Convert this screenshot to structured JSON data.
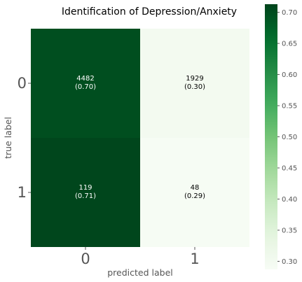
{
  "chart_data": {
    "type": "heatmap",
    "title": "Identification of Depression/Anxiety",
    "xlabel": "predicted label",
    "ylabel": "true label",
    "x_categories": [
      "0",
      "1"
    ],
    "y_categories": [
      "0",
      "1"
    ],
    "cells": [
      {
        "row": 0,
        "col": 0,
        "count": "4482",
        "ratio": "(0.70)",
        "value": 0.7
      },
      {
        "row": 0,
        "col": 1,
        "count": "1929",
        "ratio": "(0.30)",
        "value": 0.3
      },
      {
        "row": 1,
        "col": 0,
        "count": "119",
        "ratio": "(0.71)",
        "value": 0.71
      },
      {
        "row": 1,
        "col": 1,
        "count": "48",
        "ratio": "(0.29)",
        "value": 0.29
      }
    ],
    "colorbar": {
      "min": 0.287,
      "max": 0.713,
      "ticks": [
        "0.30",
        "0.35",
        "0.40",
        "0.45",
        "0.50",
        "0.55",
        "0.60",
        "0.65",
        "0.70"
      ],
      "colormap": "Greens",
      "low_color": "#f7fcf5",
      "high_color": "#00441b"
    },
    "grid": false
  }
}
